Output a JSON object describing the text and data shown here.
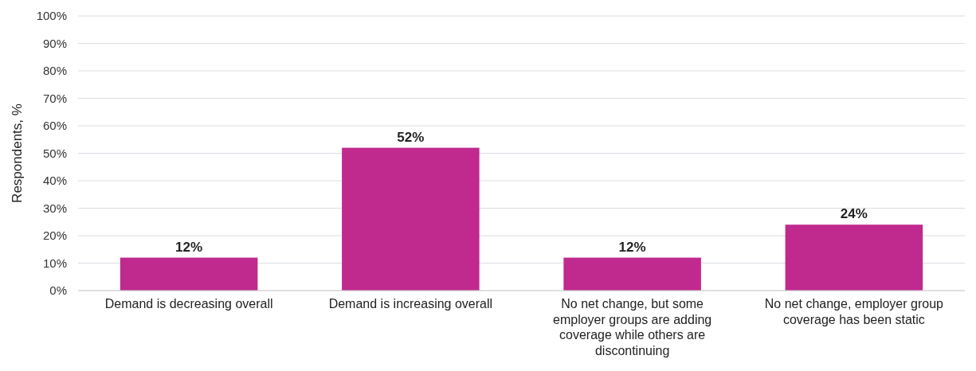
{
  "chart_data": {
    "type": "bar",
    "ylabel": "Respondents, %",
    "categories": [
      "Demand is decreasing overall",
      "Demand is increasing overall",
      "No net change, but some employer groups are adding coverage while others are discontinuing",
      "No net change, employer group coverage has been static"
    ],
    "values": [
      12,
      52,
      12,
      24
    ],
    "value_labels": [
      "12%",
      "52%",
      "12%",
      "24%"
    ],
    "color": "#c0298e",
    "ylim": [
      0,
      100
    ],
    "yticks": [
      {
        "value": 0,
        "label": "0%"
      },
      {
        "value": 10,
        "label": "10%"
      },
      {
        "value": 20,
        "label": "20%"
      },
      {
        "value": 30,
        "label": "30%"
      },
      {
        "value": 40,
        "label": "40%"
      },
      {
        "value": 50,
        "label": "50%"
      },
      {
        "value": 60,
        "label": "60%"
      },
      {
        "value": 70,
        "label": "70%"
      },
      {
        "value": 80,
        "label": "80%"
      },
      {
        "value": 90,
        "label": "90%"
      },
      {
        "value": 100,
        "label": "100%"
      }
    ],
    "grid": "y"
  }
}
